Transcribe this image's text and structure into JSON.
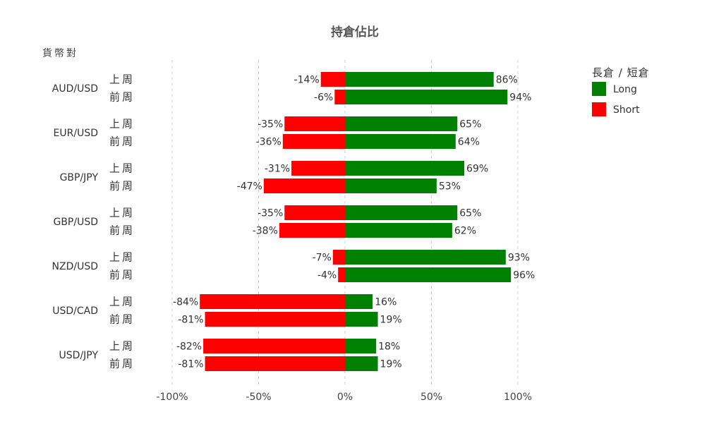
{
  "chart_data": {
    "type": "bar",
    "orientation": "horizontal",
    "stacked": "diverging",
    "title": "持倉佔比",
    "ylabel": "貨幣對",
    "xlim": [
      -100,
      100
    ],
    "xticks": [
      -100,
      -50,
      0,
      50,
      100
    ],
    "xtick_labels": [
      "-100%",
      "-50%",
      "0%",
      "50%",
      "100%"
    ],
    "grid": true,
    "legend": {
      "title": "長倉 / 短倉",
      "position": "top-right",
      "items": [
        {
          "label": "Long",
          "color": "#008000"
        },
        {
          "label": "Short",
          "color": "#ff0000"
        }
      ]
    },
    "groups": [
      {
        "pair": "AUD/USD",
        "rows": [
          {
            "period": "上周",
            "short": -14,
            "long": 86,
            "short_label": "-14%",
            "long_label": "86%"
          },
          {
            "period": "前周",
            "short": -6,
            "long": 94,
            "short_label": "-6%",
            "long_label": "94%"
          }
        ]
      },
      {
        "pair": "EUR/USD",
        "rows": [
          {
            "period": "上周",
            "short": -35,
            "long": 65,
            "short_label": "-35%",
            "long_label": "65%"
          },
          {
            "period": "前周",
            "short": -36,
            "long": 64,
            "short_label": "-36%",
            "long_label": "64%"
          }
        ]
      },
      {
        "pair": "GBP/JPY",
        "rows": [
          {
            "period": "上周",
            "short": -31,
            "long": 69,
            "short_label": "-31%",
            "long_label": "69%"
          },
          {
            "period": "前周",
            "short": -47,
            "long": 53,
            "short_label": "-47%",
            "long_label": "53%"
          }
        ]
      },
      {
        "pair": "GBP/USD",
        "rows": [
          {
            "period": "上周",
            "short": -35,
            "long": 65,
            "short_label": "-35%",
            "long_label": "65%"
          },
          {
            "period": "前周",
            "short": -38,
            "long": 62,
            "short_label": "-38%",
            "long_label": "62%"
          }
        ]
      },
      {
        "pair": "NZD/USD",
        "rows": [
          {
            "period": "上周",
            "short": -7,
            "long": 93,
            "short_label": "-7%",
            "long_label": "93%"
          },
          {
            "period": "前周",
            "short": -4,
            "long": 96,
            "short_label": "-4%",
            "long_label": "96%"
          }
        ]
      },
      {
        "pair": "USD/CAD",
        "rows": [
          {
            "period": "上周",
            "short": -84,
            "long": 16,
            "short_label": "-84%",
            "long_label": "16%"
          },
          {
            "period": "前周",
            "short": -81,
            "long": 19,
            "short_label": "-81%",
            "long_label": "19%"
          }
        ]
      },
      {
        "pair": "USD/JPY",
        "rows": [
          {
            "period": "上周",
            "short": -82,
            "long": 18,
            "short_label": "-82%",
            "long_label": "18%"
          },
          {
            "period": "前周",
            "short": -81,
            "long": 19,
            "short_label": "-81%",
            "long_label": "19%"
          }
        ]
      }
    ]
  }
}
